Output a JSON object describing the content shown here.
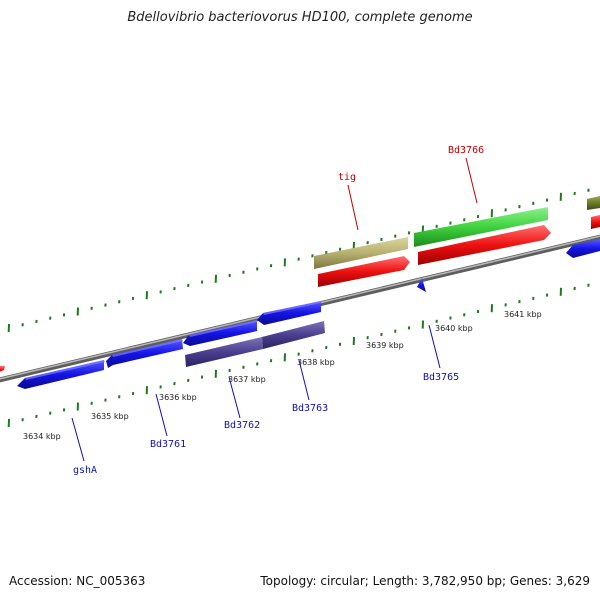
{
  "title": "Bdellovibrio bacteriovorus HD100, complete genome",
  "footer": {
    "accession": "Accession: NC_005363",
    "summary": "Topology: circular; Length: 3,782,950 bp; Genes: 3,629"
  },
  "colors": {
    "backbone": "#8a8a8a",
    "tick": "#1e7a1e",
    "cds_blue": "#1414e6",
    "cds_purple": "#4a3f8f",
    "gene_red": "#ee1010",
    "cds_green": "#3fd23f",
    "cds_tan": "#b7b070",
    "cds_olive": "#6b7a2a",
    "label_blue": "#1010b0",
    "label_red": "#c00000"
  },
  "ruler": {
    "kbp_labels": [
      "3634 kbp",
      "3635 kbp",
      "3636 kbp",
      "3637 kbp",
      "3638 kbp",
      "3639 kbp",
      "3640 kbp",
      "3641 kbp"
    ]
  },
  "gene_labels": [
    "gshA",
    "Bd3761",
    "Bd3762",
    "Bd3763",
    "Bd3765",
    "tig",
    "Bd3766"
  ]
}
